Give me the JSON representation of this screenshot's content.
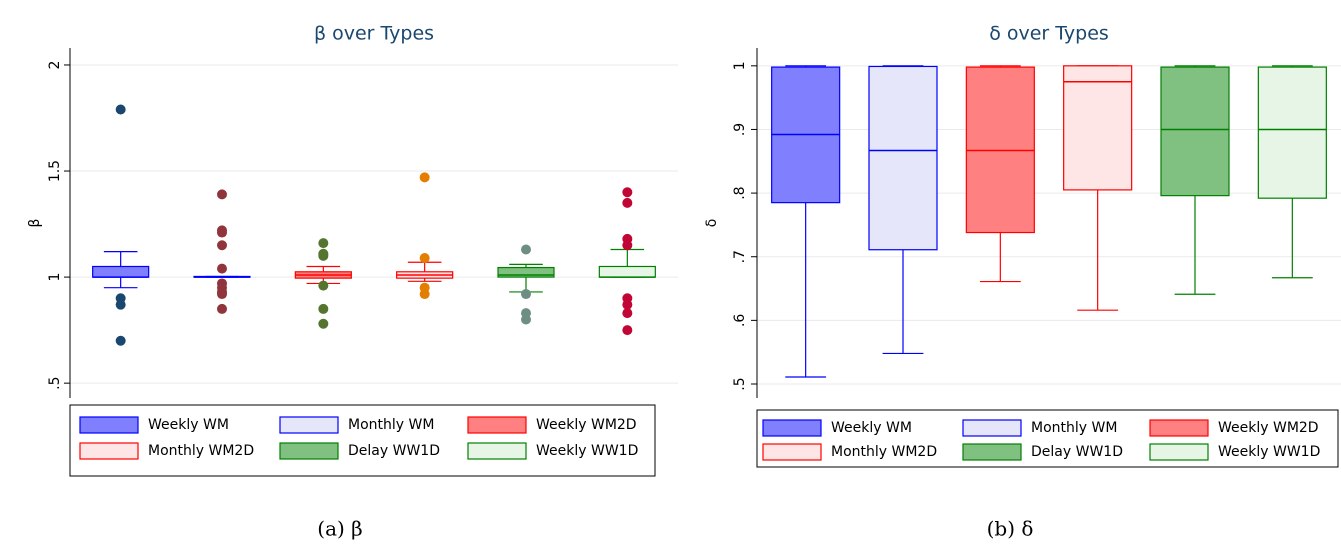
{
  "chart_data": [
    {
      "type": "box",
      "title": "β over Types",
      "ylabel": "β",
      "caption": "(a) β",
      "ylim": [
        0.43,
        2.08
      ],
      "yticks": [
        {
          "value": 0.5,
          "label": ".5"
        },
        1,
        1.5,
        2
      ],
      "grid": true,
      "legend": "bottom",
      "boxes": [
        {
          "name": "Weekly WM",
          "fill": "#8080ff",
          "stroke": "#0000ff",
          "outlier_color": "#1a476f",
          "whisker_low": 0.95,
          "q1": 1.0,
          "median": 1.0,
          "q3": 1.05,
          "whisker_high": 1.12,
          "outliers": [
            1.79,
            0.9,
            0.87,
            0.7
          ]
        },
        {
          "name": "Monthly WM",
          "fill": "#e6e6fa",
          "stroke": "#0000ff",
          "outlier_color": "#90353b",
          "whisker_low": 1.0,
          "q1": 1.0,
          "median": 1.0,
          "q3": 1.003,
          "whisker_high": 1.003,
          "outliers": [
            1.39,
            1.22,
            1.21,
            1.15,
            1.04,
            0.97,
            0.95,
            0.93,
            0.92,
            0.85
          ]
        },
        {
          "name": "Weekly WM2D",
          "fill": "#ff8080",
          "stroke": "#ff0000",
          "outlier_color": "#55752f",
          "whisker_low": 0.97,
          "q1": 0.995,
          "median": 1.01,
          "q3": 1.025,
          "whisker_high": 1.05,
          "outliers": [
            1.16,
            1.11,
            1.1,
            0.96,
            0.85,
            0.78
          ]
        },
        {
          "name": "Monthly WM2D",
          "fill": "#ffe6e6",
          "stroke": "#ff0000",
          "outlier_color": "#e37e00",
          "whisker_low": 0.98,
          "q1": 0.995,
          "median": 1.01,
          "q3": 1.025,
          "whisker_high": 1.07,
          "outliers": [
            1.47,
            1.09,
            0.95,
            0.92
          ]
        },
        {
          "name": "Delay WW1D",
          "fill": "#80c080",
          "stroke": "#008000",
          "outlier_color": "#6e8e84",
          "whisker_low": 0.93,
          "q1": 1.0,
          "median": 1.01,
          "q3": 1.045,
          "whisker_high": 1.06,
          "outliers": [
            1.13,
            0.92,
            0.83,
            0.8
          ]
        },
        {
          "name": "Weekly WW1D",
          "fill": "#e6f5e6",
          "stroke": "#008000",
          "outlier_color": "#c10534",
          "whisker_low": 1.0,
          "q1": 1.0,
          "median": 1.0,
          "q3": 1.05,
          "whisker_high": 1.13,
          "outliers": [
            1.4,
            1.35,
            1.18,
            1.15,
            0.9,
            0.87,
            0.83,
            0.75
          ]
        }
      ]
    },
    {
      "type": "box",
      "title": "δ over Types",
      "ylabel": "δ",
      "caption": "(b) δ",
      "ylim": [
        0.478,
        1.028
      ],
      "yticks": [
        {
          "value": 0.5,
          "label": ".5"
        },
        {
          "value": 0.6,
          "label": ".6"
        },
        {
          "value": 0.7,
          "label": ".7"
        },
        {
          "value": 0.8,
          "label": ".8"
        },
        {
          "value": 0.9,
          "label": ".9"
        },
        1
      ],
      "grid": true,
      "legend": "bottom",
      "boxes": [
        {
          "name": "Weekly WM",
          "fill": "#8080ff",
          "stroke": "#0000ff",
          "whisker_low": 0.511,
          "q1": 0.785,
          "median": 0.892,
          "q3": 0.998,
          "whisker_high": 1.0
        },
        {
          "name": "Monthly WM",
          "fill": "#e6e6fa",
          "stroke": "#0000ff",
          "whisker_low": 0.548,
          "q1": 0.711,
          "median": 0.867,
          "q3": 0.999,
          "whisker_high": 1.0
        },
        {
          "name": "Weekly WM2D",
          "fill": "#ff8080",
          "stroke": "#ff0000",
          "whisker_low": 0.661,
          "q1": 0.738,
          "median": 0.867,
          "q3": 0.998,
          "whisker_high": 1.0
        },
        {
          "name": "Monthly WM2D",
          "fill": "#ffe6e6",
          "stroke": "#ff0000",
          "whisker_low": 0.616,
          "q1": 0.805,
          "median": 0.975,
          "q3": 1.0,
          "whisker_high": 1.0
        },
        {
          "name": "Delay WW1D",
          "fill": "#80c080",
          "stroke": "#008000",
          "whisker_low": 0.641,
          "q1": 0.796,
          "median": 0.9,
          "q3": 0.998,
          "whisker_high": 1.0
        },
        {
          "name": "Weekly WW1D",
          "fill": "#e6f5e6",
          "stroke": "#008000",
          "whisker_low": 0.667,
          "q1": 0.792,
          "median": 0.9,
          "q3": 0.998,
          "whisker_high": 1.0
        }
      ]
    }
  ]
}
